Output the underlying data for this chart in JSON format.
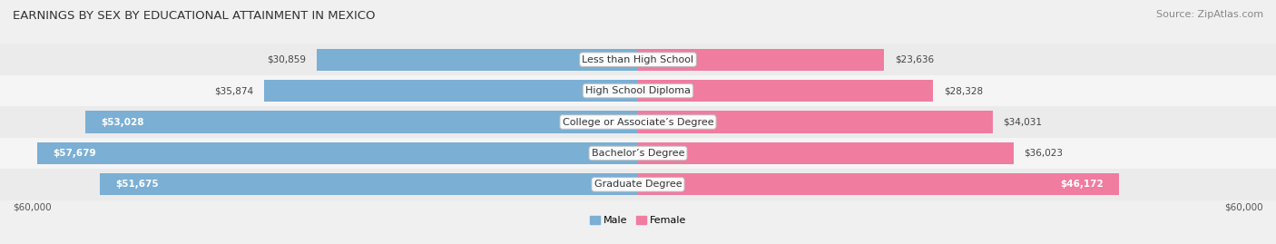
{
  "title": "EARNINGS BY SEX BY EDUCATIONAL ATTAINMENT IN MEXICO",
  "source": "Source: ZipAtlas.com",
  "categories": [
    "Less than High School",
    "High School Diploma",
    "College or Associate’s Degree",
    "Bachelor’s Degree",
    "Graduate Degree"
  ],
  "male_values": [
    30859,
    35874,
    53028,
    57679,
    51675
  ],
  "female_values": [
    23636,
    28328,
    34031,
    36023,
    46172
  ],
  "male_color": "#7bafd4",
  "female_color": "#f07ca0",
  "male_label": "Male",
  "female_label": "Female",
  "max_val": 60000,
  "bg_color": "#f0f0f0",
  "row_colors": [
    "#ebebeb",
    "#f5f5f5"
  ],
  "title_fontsize": 9.5,
  "source_fontsize": 8,
  "label_fontsize": 8,
  "value_fontsize": 7.5,
  "axis_label": "$60,000",
  "male_inside_threshold": 40000,
  "female_inside_threshold": 40000
}
